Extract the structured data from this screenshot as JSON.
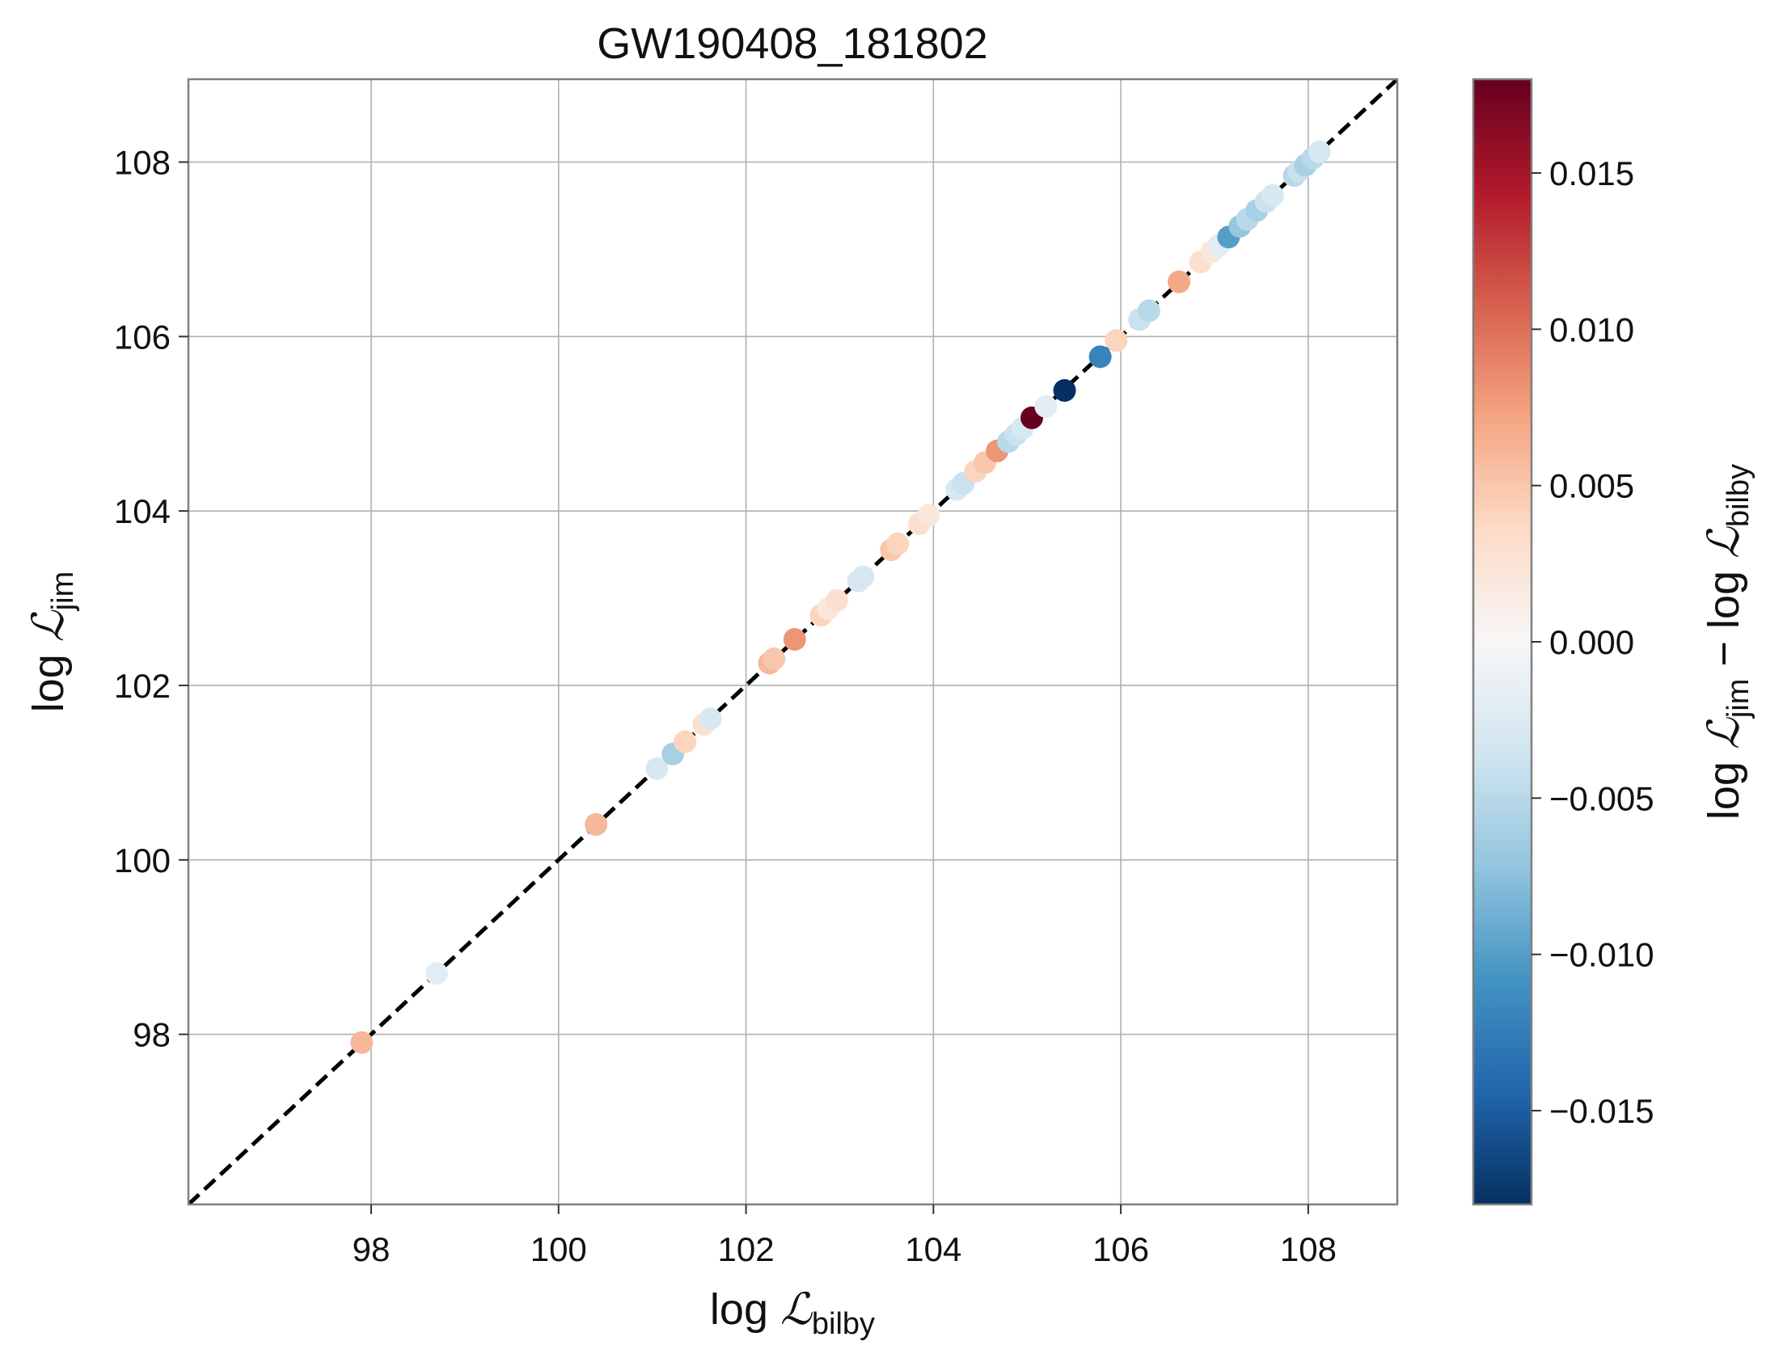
{
  "chart_data": {
    "type": "scatter",
    "title": "GW190408_181802",
    "xlabel": {
      "base": "log ",
      "symbol": "ℒ",
      "sub": "bilby"
    },
    "ylabel": {
      "base": "log ",
      "symbol": "ℒ",
      "sub": "jim"
    },
    "xlim": [
      96.05,
      108.95
    ],
    "ylim": [
      96.05,
      108.95
    ],
    "xticks": [
      98,
      100,
      102,
      104,
      106,
      108
    ],
    "yticks": [
      98,
      100,
      102,
      104,
      106,
      108
    ],
    "xtick_labels": [
      "98",
      "100",
      "102",
      "104",
      "106",
      "108"
    ],
    "ytick_labels": [
      "98",
      "100",
      "102",
      "104",
      "106",
      "108"
    ],
    "grid": true,
    "reference_line": {
      "style": "dashed",
      "color": "#000000",
      "description": "y = x"
    },
    "colorbar": {
      "label": {
        "a_base": "log ",
        "a_symbol": "ℒ",
        "a_sub": "jim",
        "minus": " − ",
        "b_base": "log ",
        "b_symbol": "ℒ",
        "b_sub": "bilby"
      },
      "range": [
        -0.018,
        0.018
      ],
      "ticks": [
        0.015,
        0.01,
        0.005,
        0.0,
        -0.005,
        -0.01,
        -0.015
      ],
      "tick_labels": [
        "0.015",
        "0.010",
        "0.005",
        "0.000",
        "−0.005",
        "−0.010",
        "−0.015"
      ],
      "colormap": "RdBu_r",
      "colormap_stops": [
        "#053061",
        "#2166ac",
        "#4393c3",
        "#92c5de",
        "#d1e5f0",
        "#f7f7f7",
        "#fddbc7",
        "#f4a582",
        "#d6604d",
        "#b2182b",
        "#67001f"
      ]
    },
    "points": [
      {
        "x": 97.9,
        "y": 97.906,
        "c": 0.006
      },
      {
        "x": 98.7,
        "y": 98.698,
        "c": -0.002
      },
      {
        "x": 100.4,
        "y": 100.406,
        "c": 0.006
      },
      {
        "x": 101.05,
        "y": 101.047,
        "c": -0.003
      },
      {
        "x": 101.22,
        "y": 101.214,
        "c": -0.006
      },
      {
        "x": 101.35,
        "y": 101.354,
        "c": 0.004
      },
      {
        "x": 101.55,
        "y": 101.553,
        "c": 0.003
      },
      {
        "x": 101.62,
        "y": 101.617,
        "c": -0.003
      },
      {
        "x": 102.25,
        "y": 102.256,
        "c": 0.006
      },
      {
        "x": 102.3,
        "y": 102.305,
        "c": 0.005
      },
      {
        "x": 102.52,
        "y": 102.528,
        "c": 0.008
      },
      {
        "x": 102.8,
        "y": 102.804,
        "c": 0.004
      },
      {
        "x": 102.88,
        "y": 102.882,
        "c": 0.002
      },
      {
        "x": 102.97,
        "y": 102.973,
        "c": 0.003
      },
      {
        "x": 103.2,
        "y": 103.197,
        "c": -0.003
      },
      {
        "x": 103.25,
        "y": 103.247,
        "c": -0.003
      },
      {
        "x": 103.55,
        "y": 103.555,
        "c": 0.005
      },
      {
        "x": 103.62,
        "y": 103.624,
        "c": 0.004
      },
      {
        "x": 103.85,
        "y": 103.853,
        "c": 0.003
      },
      {
        "x": 103.95,
        "y": 103.952,
        "c": 0.002
      },
      {
        "x": 104.25,
        "y": 104.247,
        "c": -0.003
      },
      {
        "x": 104.32,
        "y": 104.316,
        "c": -0.004
      },
      {
        "x": 104.45,
        "y": 104.454,
        "c": 0.004
      },
      {
        "x": 104.55,
        "y": 104.555,
        "c": 0.005
      },
      {
        "x": 104.68,
        "y": 104.688,
        "c": 0.008
      },
      {
        "x": 104.8,
        "y": 104.795,
        "c": -0.005
      },
      {
        "x": 104.88,
        "y": 104.876,
        "c": -0.004
      },
      {
        "x": 104.95,
        "y": 104.947,
        "c": -0.003
      },
      {
        "x": 105.05,
        "y": 105.068,
        "c": 0.018
      },
      {
        "x": 105.2,
        "y": 105.198,
        "c": -0.002
      },
      {
        "x": 105.4,
        "y": 105.382,
        "c": -0.018
      },
      {
        "x": 105.78,
        "y": 105.768,
        "c": -0.012
      },
      {
        "x": 105.95,
        "y": 105.954,
        "c": 0.004
      },
      {
        "x": 106.2,
        "y": 106.196,
        "c": -0.004
      },
      {
        "x": 106.3,
        "y": 106.295,
        "c": -0.005
      },
      {
        "x": 106.62,
        "y": 106.627,
        "c": 0.007
      },
      {
        "x": 106.85,
        "y": 106.853,
        "c": 0.003
      },
      {
        "x": 106.97,
        "y": 106.972,
        "c": 0.002
      },
      {
        "x": 107.05,
        "y": 107.048,
        "c": -0.002
      },
      {
        "x": 107.15,
        "y": 107.14,
        "c": -0.01
      },
      {
        "x": 107.27,
        "y": 107.263,
        "c": -0.007
      },
      {
        "x": 107.35,
        "y": 107.345,
        "c": -0.005
      },
      {
        "x": 107.45,
        "y": 107.444,
        "c": -0.006
      },
      {
        "x": 107.55,
        "y": 107.546,
        "c": -0.004
      },
      {
        "x": 107.62,
        "y": 107.617,
        "c": -0.003
      },
      {
        "x": 107.85,
        "y": 107.845,
        "c": -0.005
      },
      {
        "x": 107.9,
        "y": 107.896,
        "c": -0.004
      },
      {
        "x": 107.97,
        "y": 107.964,
        "c": -0.006
      },
      {
        "x": 108.05,
        "y": 108.045,
        "c": -0.005
      },
      {
        "x": 108.12,
        "y": 108.117,
        "c": -0.003
      }
    ]
  }
}
